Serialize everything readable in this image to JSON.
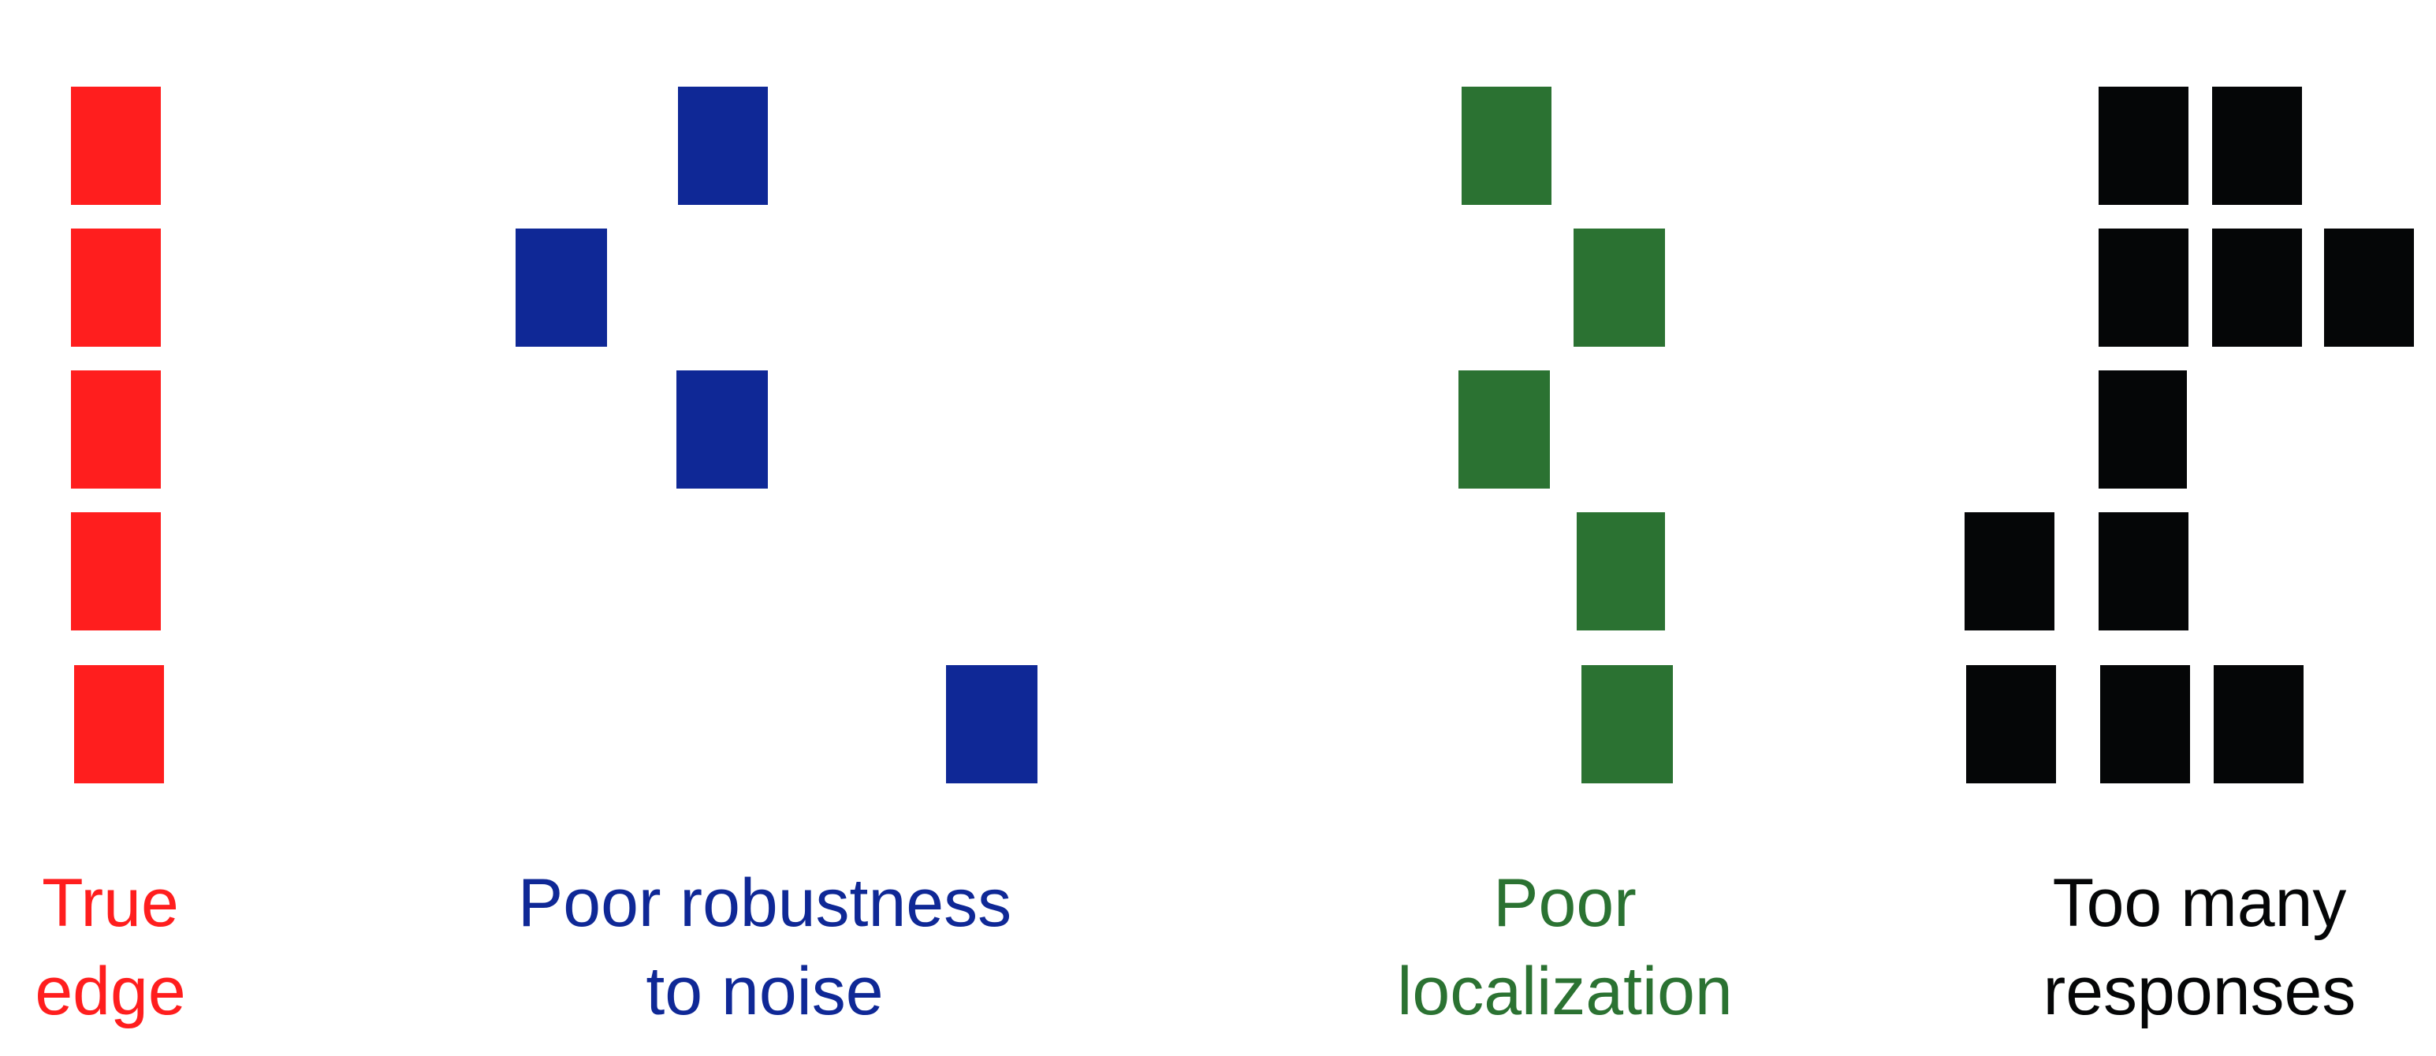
{
  "background": "#ffffff",
  "panels": [
    {
      "id": "true-edge",
      "color": "#ff1e1e",
      "caption": [
        "True",
        "edge"
      ]
    },
    {
      "id": "poor-robustness",
      "color": "#0f2896",
      "caption": [
        "Poor robustness",
        "to noise"
      ]
    },
    {
      "id": "poor-localization",
      "color": "#2b7232",
      "caption": [
        "Poor",
        "localization"
      ]
    },
    {
      "id": "too-many-responses",
      "color": "#050607",
      "caption": [
        "Too many",
        "responses"
      ]
    }
  ]
}
